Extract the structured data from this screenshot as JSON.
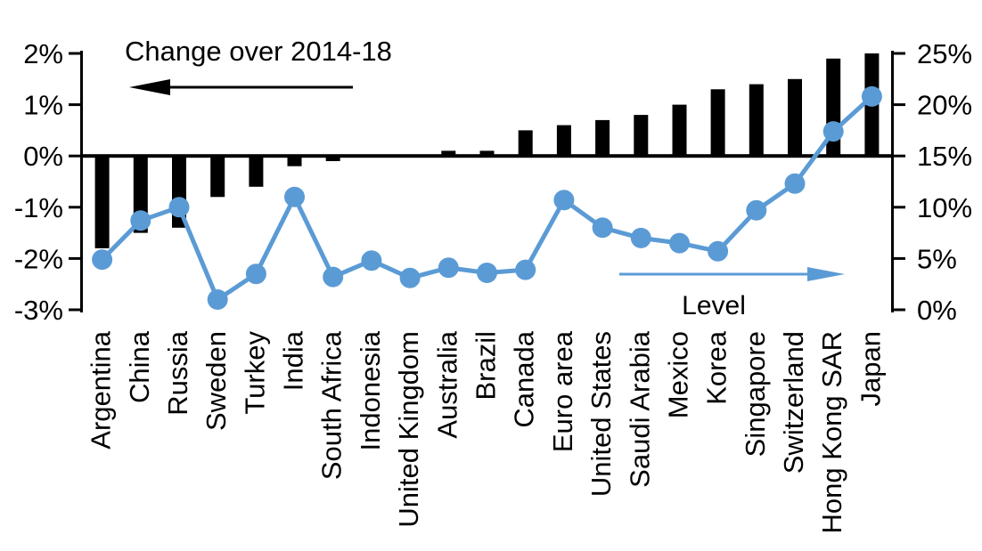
{
  "chart_data": {
    "type": "combo",
    "title": "Change over 2014-18",
    "categories": [
      "Argentina",
      "China",
      "Russia",
      "Sweden",
      "Turkey",
      "India",
      "South Africa",
      "Indonesia",
      "United Kingdom",
      "Australia",
      "Brazil",
      "Canada",
      "Euro area",
      "United States",
      "Saudi Arabia",
      "Mexico",
      "Korea",
      "Singapore",
      "Switzerland",
      "Hong Kong SAR",
      "Japan"
    ],
    "series": [
      {
        "name": "Change over 2014-18",
        "type": "bar",
        "axis": "left",
        "color": "#000000",
        "values": [
          -1.8,
          -1.5,
          -1.4,
          -0.8,
          -0.6,
          -0.2,
          -0.1,
          0,
          0,
          0.1,
          0.1,
          0.5,
          0.6,
          0.7,
          0.8,
          1.0,
          1.3,
          1.4,
          1.5,
          1.9,
          2.0
        ]
      },
      {
        "name": "Level",
        "type": "line",
        "axis": "right",
        "color": "#5B9BD5",
        "values": [
          4.9,
          8.7,
          10.0,
          1.0,
          3.5,
          11.0,
          3.2,
          4.8,
          3.1,
          4.1,
          3.6,
          3.9,
          10.7,
          8.0,
          7.0,
          6.5,
          5.7,
          9.7,
          12.3,
          17.4,
          20.8
        ]
      }
    ],
    "left_axis": {
      "min": -3,
      "max": 2,
      "tick_values": [
        2,
        1,
        0,
        -1,
        -2,
        -3
      ],
      "tick_labels": [
        "2%",
        "1%",
        "0%",
        "-1%",
        "-2%",
        "-3%"
      ]
    },
    "right_axis": {
      "min": 0,
      "max": 25,
      "tick_values": [
        25,
        20,
        15,
        10,
        5,
        0
      ],
      "tick_labels": [
        "25%",
        "20%",
        "15%",
        "10%",
        "5%",
        "0%"
      ]
    },
    "annotations": [
      {
        "text": "Change over 2014-18",
        "series": "bar",
        "arrow": "left",
        "color": "#000000"
      },
      {
        "text": "Level",
        "series": "line",
        "arrow": "right",
        "color": "#5B9BD5"
      }
    ],
    "grid": false,
    "background": "#ffffff"
  }
}
